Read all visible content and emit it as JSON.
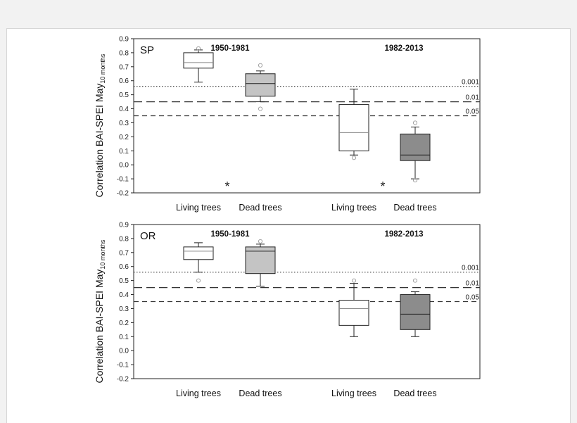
{
  "chart_data": [
    {
      "type": "box",
      "panel_label": "SP",
      "ylabel": "Correlation BAI-SPEI May",
      "ylabel_subscript": "10 months",
      "ylim": [
        -0.2,
        0.9
      ],
      "yticks": [
        "0.9",
        "0.8",
        "0.7",
        "0.6",
        "0.5",
        "0.4",
        "0.3",
        "0.2",
        "0.1",
        "0.0",
        "-0.1",
        "-0.2"
      ],
      "periods": [
        "1950-1981",
        "1982-2013"
      ],
      "categories": [
        "Living trees",
        "Dead trees",
        "Living trees",
        "Dead trees"
      ],
      "significance_lines": [
        {
          "label": "0.001",
          "value": 0.56,
          "style": "dotted"
        },
        {
          "label": "0.01",
          "value": 0.45,
          "style": "long-dash"
        },
        {
          "label": "0.05",
          "value": 0.35,
          "style": "dash"
        }
      ],
      "boxes": [
        {
          "category": "Living trees",
          "period": "1950-1981",
          "fill": "#ffffff",
          "whisker_low": 0.59,
          "q1": 0.69,
          "median": 0.73,
          "q3": 0.8,
          "whisker_high": 0.82,
          "outliers": [
            0.83
          ]
        },
        {
          "category": "Dead trees",
          "period": "1950-1981",
          "fill": "#c4c4c4",
          "whisker_low": 0.45,
          "q1": 0.49,
          "median": 0.58,
          "q3": 0.65,
          "whisker_high": 0.67,
          "outliers": [
            0.71,
            0.4
          ]
        },
        {
          "category": "Living trees",
          "period": "1982-2013",
          "fill": "#ffffff",
          "whisker_low": 0.07,
          "q1": 0.1,
          "median": 0.23,
          "q3": 0.43,
          "whisker_high": 0.54,
          "outliers": [
            0.05
          ]
        },
        {
          "category": "Dead trees",
          "period": "1982-2013",
          "fill": "#8c8c8c",
          "whisker_low": -0.1,
          "q1": 0.03,
          "median": 0.07,
          "q3": 0.22,
          "whisker_high": 0.27,
          "outliers": [
            0.3,
            -0.11
          ]
        }
      ],
      "annotations": [
        "*",
        "*"
      ]
    },
    {
      "type": "box",
      "panel_label": "OR",
      "ylabel": "Correlation BAI-SPEI May",
      "ylabel_subscript": "10 months",
      "ylim": [
        -0.2,
        0.9
      ],
      "yticks": [
        "0.9",
        "0.8",
        "0.7",
        "0.6",
        "0.5",
        "0.4",
        "0.3",
        "0.2",
        "0.1",
        "0.0",
        "-0.1",
        "-0.2"
      ],
      "periods": [
        "1950-1981",
        "1982-2013"
      ],
      "categories": [
        "Living trees",
        "Dead trees",
        "Living trees",
        "Dead trees"
      ],
      "significance_lines": [
        {
          "label": "0.001",
          "value": 0.56,
          "style": "dotted"
        },
        {
          "label": "0.01",
          "value": 0.45,
          "style": "long-dash"
        },
        {
          "label": "0.05",
          "value": 0.35,
          "style": "dash"
        }
      ],
      "boxes": [
        {
          "category": "Living trees",
          "period": "1950-1981",
          "fill": "#ffffff",
          "whisker_low": 0.56,
          "q1": 0.65,
          "median": 0.71,
          "q3": 0.74,
          "whisker_high": 0.77,
          "outliers": [
            0.5
          ]
        },
        {
          "category": "Dead trees",
          "period": "1950-1981",
          "fill": "#c4c4c4",
          "whisker_low": 0.46,
          "q1": 0.55,
          "median": 0.71,
          "q3": 0.74,
          "whisker_high": 0.76,
          "outliers": [
            0.78
          ]
        },
        {
          "category": "Living trees",
          "period": "1982-2013",
          "fill": "#ffffff",
          "whisker_low": 0.1,
          "q1": 0.18,
          "median": 0.3,
          "q3": 0.36,
          "whisker_high": 0.48,
          "outliers": [
            0.5
          ]
        },
        {
          "category": "Dead trees",
          "period": "1982-2013",
          "fill": "#8c8c8c",
          "whisker_low": 0.1,
          "q1": 0.15,
          "median": 0.26,
          "q3": 0.4,
          "whisker_high": 0.42,
          "outliers": [
            0.5
          ]
        }
      ],
      "annotations": []
    }
  ]
}
